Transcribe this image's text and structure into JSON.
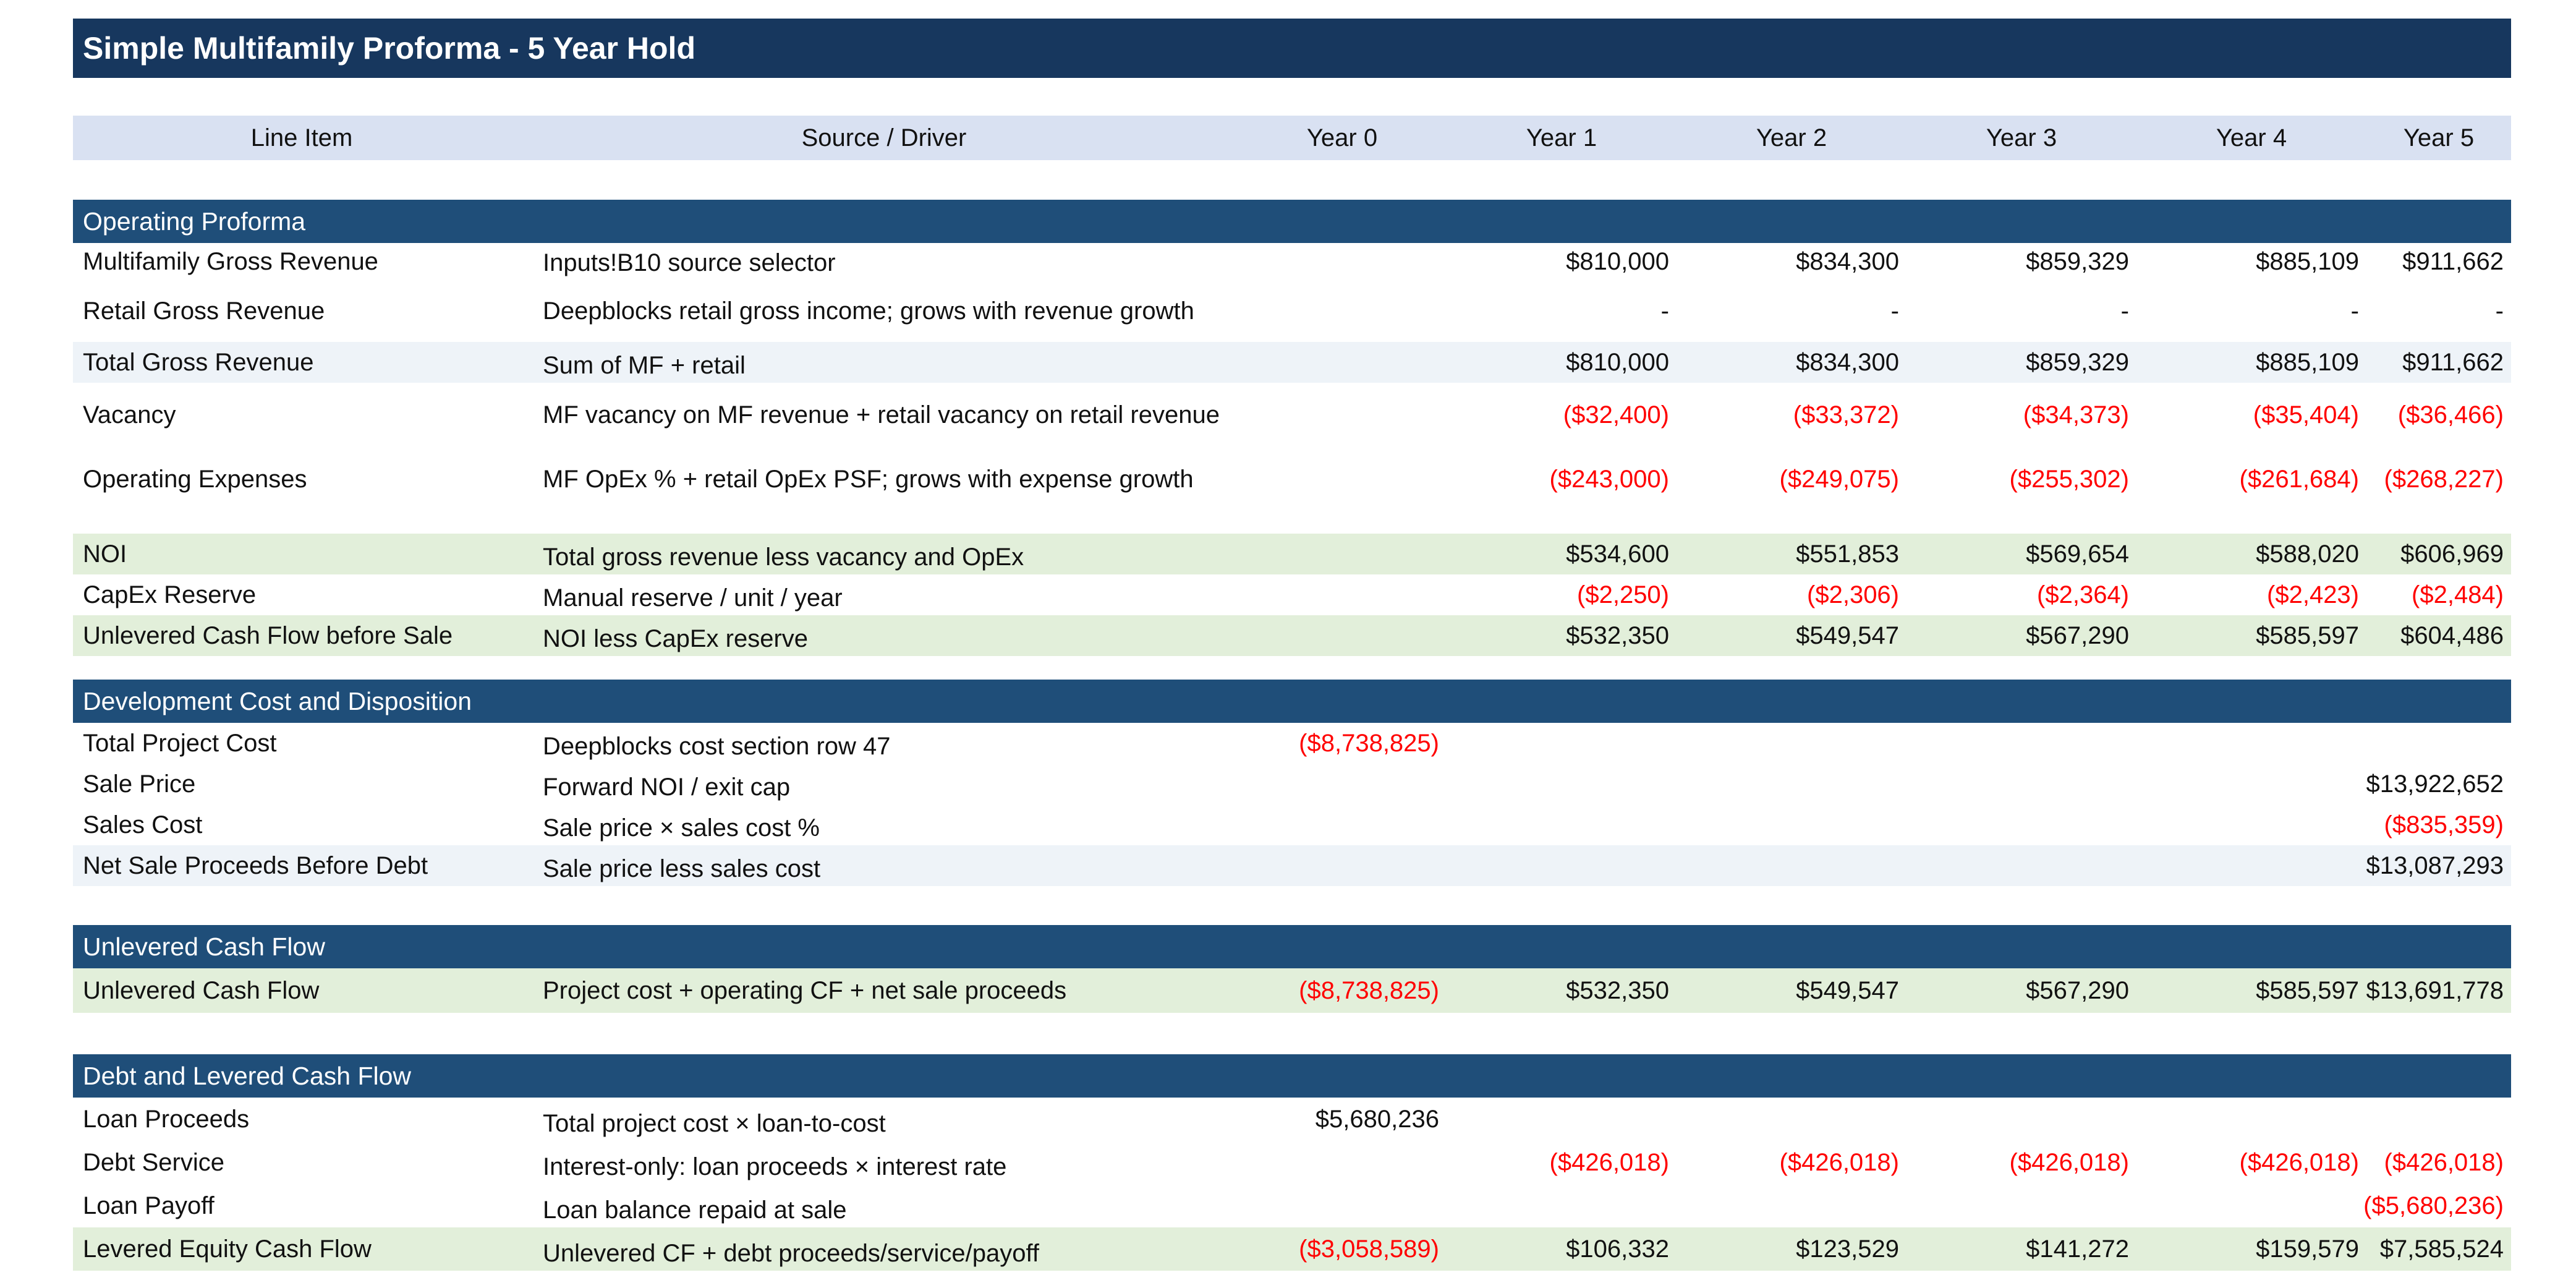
{
  "title": "Simple Multifamily Proforma - 5 Year Hold",
  "headers": {
    "line_item": "Line Item",
    "source": "Source / Driver",
    "years": [
      "Year 0",
      "Year 1",
      "Year 2",
      "Year 3",
      "Year 4",
      "Year 5"
    ]
  },
  "sections": {
    "operating": {
      "title": "Operating Proforma",
      "rows": [
        {
          "item": "Multifamily Gross Revenue",
          "source": "Inputs!B10 source selector",
          "values": [
            "",
            "$810,000",
            "$834,300",
            "$859,329",
            "$885,109",
            "$911,662"
          ]
        },
        {
          "item": "Retail Gross Revenue",
          "source": "Deepblocks retail gross income; grows with revenue growth",
          "values": [
            "",
            "-",
            "-",
            "-",
            "-",
            "-"
          ]
        },
        {
          "item": "Total Gross Revenue",
          "source": "Sum of MF + retail",
          "values": [
            "",
            "$810,000",
            "$834,300",
            "$859,329",
            "$885,109",
            "$911,662"
          ]
        },
        {
          "item": "Vacancy",
          "source": "MF vacancy on MF revenue + retail vacancy on retail revenue",
          "values": [
            "",
            "($32,400)",
            "($33,372)",
            "($34,373)",
            "($35,404)",
            "($36,466)"
          ]
        },
        {
          "item": "Operating Expenses",
          "source": "MF OpEx % + retail OpEx PSF; grows with expense growth",
          "values": [
            "",
            "($243,000)",
            "($249,075)",
            "($255,302)",
            "($261,684)",
            "($268,227)"
          ]
        },
        {
          "item": "NOI",
          "source": "Total gross revenue less vacancy and OpEx",
          "values": [
            "",
            "$534,600",
            "$551,853",
            "$569,654",
            "$588,020",
            "$606,969"
          ]
        },
        {
          "item": "CapEx Reserve",
          "source": "Manual reserve / unit / year",
          "values": [
            "",
            "($2,250)",
            "($2,306)",
            "($2,364)",
            "($2,423)",
            "($2,484)"
          ]
        },
        {
          "item": "Unlevered Cash Flow before Sale",
          "source": "NOI less CapEx reserve",
          "values": [
            "",
            "$532,350",
            "$549,547",
            "$567,290",
            "$585,597",
            "$604,486"
          ]
        }
      ]
    },
    "development": {
      "title": "Development Cost and Disposition",
      "rows": [
        {
          "item": "Total Project Cost",
          "source": "Deepblocks cost section row 47",
          "values": [
            "($8,738,825)",
            "",
            "",
            "",
            "",
            ""
          ]
        },
        {
          "item": "Sale Price",
          "source": "Forward NOI / exit cap",
          "values": [
            "",
            "",
            "",
            "",
            "",
            "$13,922,652"
          ]
        },
        {
          "item": "Sales Cost",
          "source": "Sale price × sales cost %",
          "values": [
            "",
            "",
            "",
            "",
            "",
            "($835,359)"
          ]
        },
        {
          "item": "Net Sale Proceeds Before Debt",
          "source": "Sale price less sales cost",
          "values": [
            "",
            "",
            "",
            "",
            "",
            "$13,087,293"
          ]
        }
      ]
    },
    "unlevered": {
      "title": "Unlevered Cash Flow",
      "rows": [
        {
          "item": "Unlevered Cash Flow",
          "source": "Project cost + operating CF + net sale proceeds",
          "values": [
            "($8,738,825)",
            "$532,350",
            "$549,547",
            "$567,290",
            "$585,597",
            "$13,691,778"
          ]
        }
      ]
    },
    "debt": {
      "title": "Debt and Levered Cash Flow",
      "rows": [
        {
          "item": "Loan Proceeds",
          "source": "Total project cost × loan-to-cost",
          "values": [
            "$5,680,236",
            "",
            "",
            "",
            "",
            ""
          ]
        },
        {
          "item": "Debt Service",
          "source": "Interest-only: loan proceeds × interest rate",
          "values": [
            "",
            "($426,018)",
            "($426,018)",
            "($426,018)",
            "($426,018)",
            "($426,018)"
          ]
        },
        {
          "item": "Loan Payoff",
          "source": "Loan balance repaid at sale",
          "values": [
            "",
            "",
            "",
            "",
            "",
            "($5,680,236)"
          ]
        },
        {
          "item": "Levered Equity Cash Flow",
          "source": "Unlevered CF + debt proceeds/service/payoff",
          "values": [
            "($3,058,589)",
            "$106,332",
            "$123,529",
            "$141,272",
            "$159,579",
            "$7,585,524"
          ]
        }
      ]
    }
  },
  "colors": {
    "title_bg": "#17375e",
    "section_bg": "#1f4e79",
    "header_bg": "#d9e1f2",
    "total_row_bg": "#eef3f8",
    "key_row_bg": "#e2efda",
    "negative_text": "#ff0000"
  }
}
